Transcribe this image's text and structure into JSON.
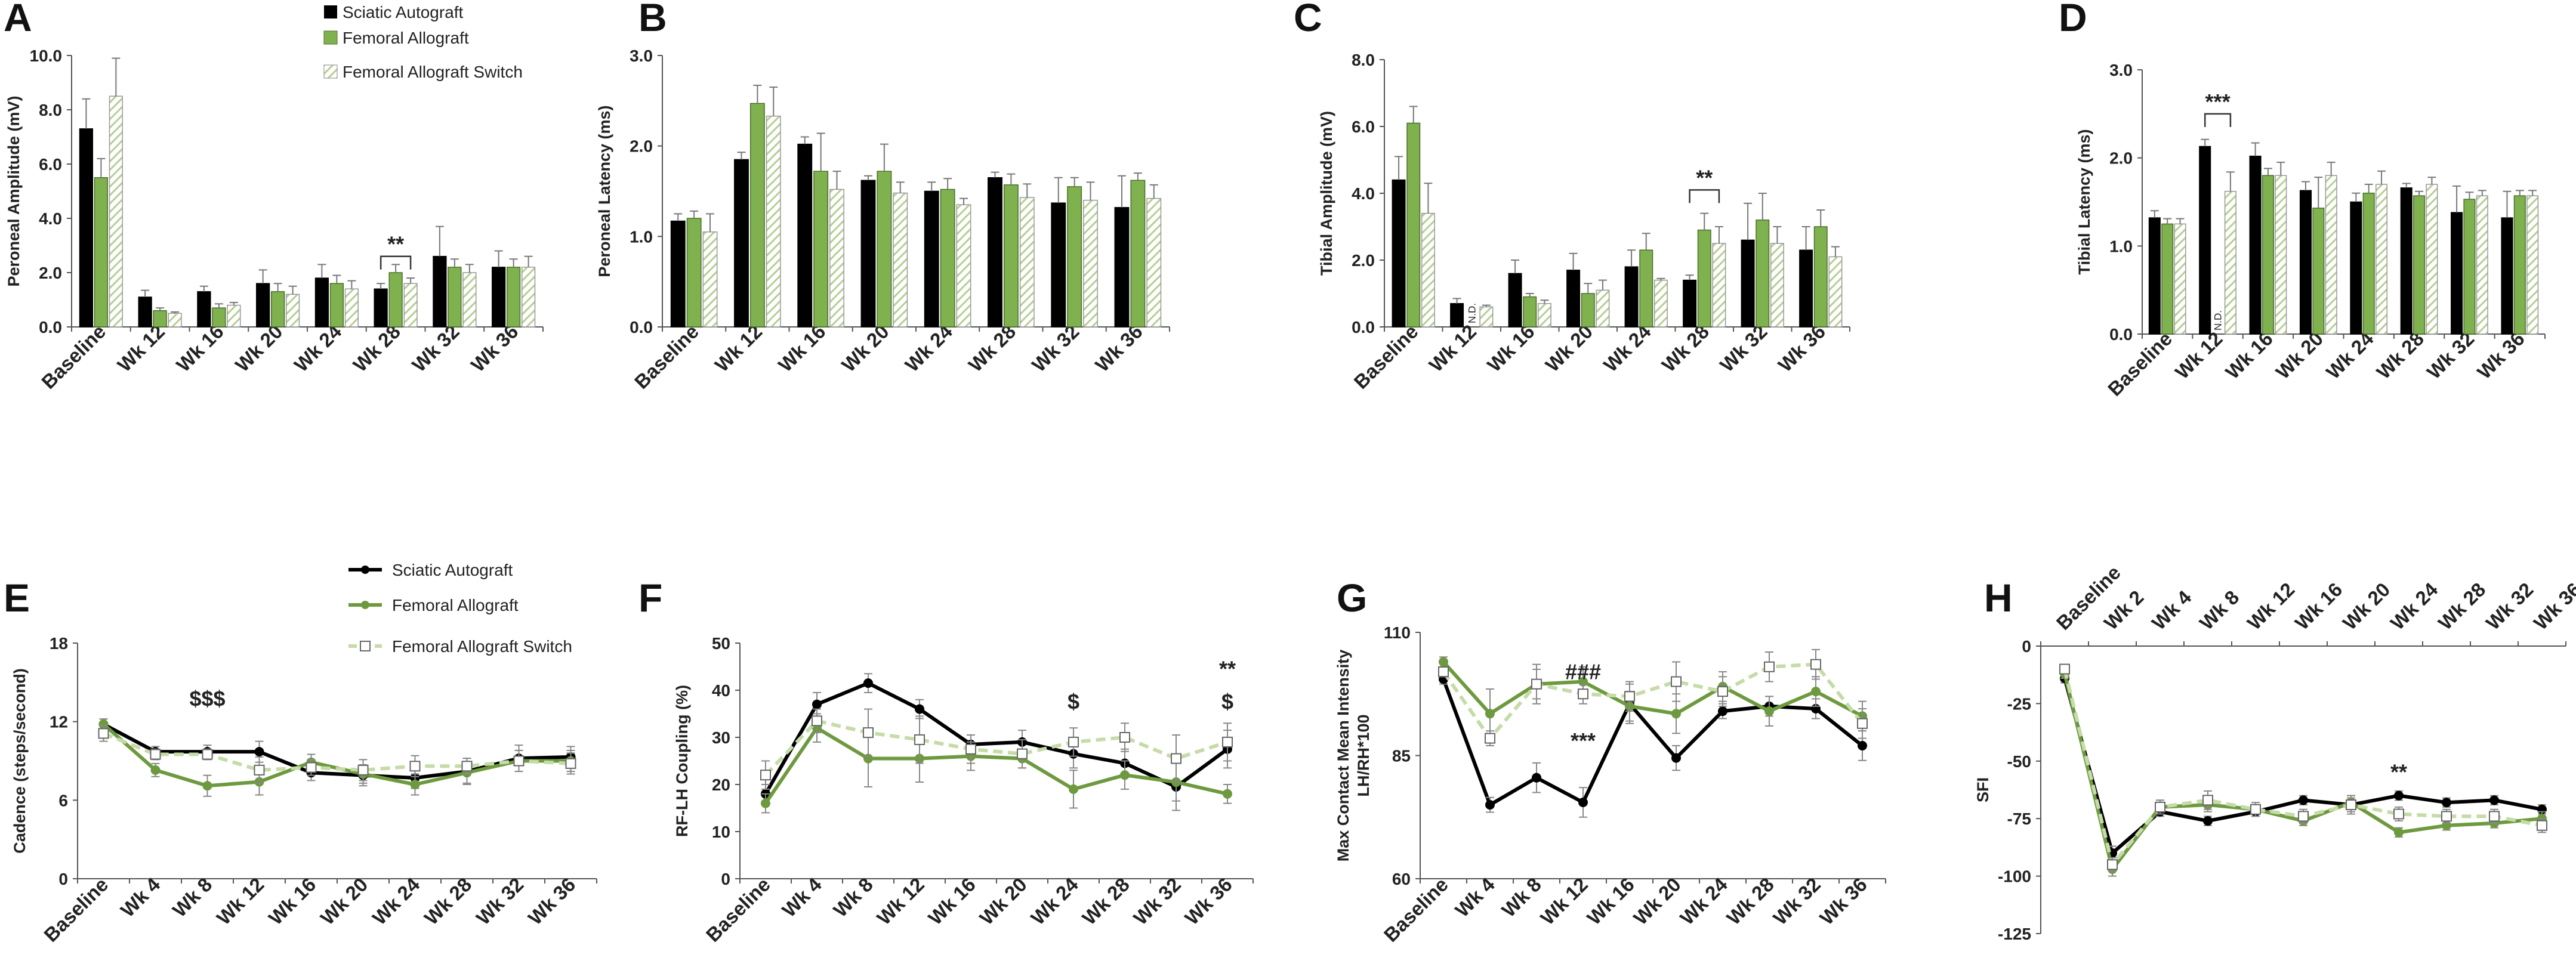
{
  "colors": {
    "sciatic": "#000000",
    "femoral": "#6e9a3f",
    "femoral_bar": "#7fb14e",
    "switch": "#bfd6a1",
    "switch_line": "#c5dba8"
  },
  "legend_top": [
    "Sciatic Autograft",
    "Femoral Allograft",
    "Femoral Allograft Switch"
  ],
  "legend_bottom": [
    "Sciatic Autograft",
    "Femoral Allograft",
    "Femoral Allograft Switch"
  ],
  "chart_data": [
    {
      "panel": "A",
      "type": "bar",
      "ylabel": "Peroneal Amplitude (mV)",
      "ylim": [
        0,
        10
      ],
      "yticks": [
        "0.0",
        "2.0",
        "4.0",
        "6.0",
        "8.0",
        "10.0"
      ],
      "categories": [
        "Baseline",
        "Wk 12",
        "Wk 16",
        "Wk 20",
        "Wk 24",
        "Wk 28",
        "Wk 32",
        "Wk 36"
      ],
      "series": [
        {
          "name": "Sciatic Autograft",
          "values": [
            7.3,
            1.1,
            1.3,
            1.6,
            1.8,
            1.4,
            2.6,
            2.2
          ],
          "errors": [
            1.1,
            0.25,
            0.2,
            0.5,
            0.5,
            0.2,
            1.1,
            0.6
          ]
        },
        {
          "name": "Femoral Allograft",
          "values": [
            5.5,
            0.6,
            0.7,
            1.3,
            1.6,
            2.0,
            2.2,
            2.2
          ],
          "errors": [
            0.7,
            0.1,
            0.15,
            0.3,
            0.3,
            0.3,
            0.3,
            0.3
          ]
        },
        {
          "name": "Femoral Allograft Switch",
          "values": [
            8.5,
            0.5,
            0.8,
            1.2,
            1.4,
            1.6,
            2.0,
            2.2
          ],
          "errors": [
            1.4,
            0.05,
            0.1,
            0.3,
            0.3,
            0.2,
            0.3,
            0.4
          ]
        }
      ],
      "annotations": [
        {
          "text": "**",
          "category": "Wk 28",
          "y": 2.6,
          "bracket": true
        }
      ]
    },
    {
      "panel": "B",
      "type": "bar",
      "ylabel": "Peroneal Latency (ms)",
      "ylim": [
        0,
        3
      ],
      "yticks": [
        "0.0",
        "1.0",
        "2.0",
        "3.0"
      ],
      "categories": [
        "Baseline",
        "Wk 12",
        "Wk 16",
        "Wk 20",
        "Wk 24",
        "Wk 28",
        "Wk 32",
        "Wk 36"
      ],
      "series": [
        {
          "name": "Sciatic Autograft",
          "values": [
            1.17,
            1.85,
            2.02,
            1.62,
            1.5,
            1.65,
            1.37,
            1.32
          ],
          "errors": [
            0.08,
            0.08,
            0.08,
            0.05,
            0.1,
            0.06,
            0.28,
            0.35
          ]
        },
        {
          "name": "Femoral Allograft",
          "values": [
            1.2,
            2.47,
            1.72,
            1.72,
            1.52,
            1.57,
            1.55,
            1.62
          ],
          "errors": [
            0.08,
            0.2,
            0.42,
            0.3,
            0.12,
            0.12,
            0.1,
            0.08
          ]
        },
        {
          "name": "Femoral Allograft Switch",
          "values": [
            1.05,
            2.33,
            1.52,
            1.48,
            1.35,
            1.43,
            1.4,
            1.42
          ],
          "errors": [
            0.2,
            0.32,
            0.2,
            0.12,
            0.07,
            0.15,
            0.2,
            0.15
          ]
        }
      ],
      "annotations": []
    },
    {
      "panel": "C",
      "type": "bar",
      "ylabel": "Tibial Amplitude (mV)",
      "ylim": [
        0,
        8
      ],
      "yticks": [
        "0.0",
        "2.0",
        "4.0",
        "6.0",
        "8.0"
      ],
      "categories": [
        "Baseline",
        "Wk 12",
        "Wk 16",
        "Wk 20",
        "Wk 24",
        "Wk 28",
        "Wk 32",
        "Wk 36"
      ],
      "series": [
        {
          "name": "Sciatic Autograft",
          "values": [
            4.4,
            0.7,
            1.6,
            1.7,
            1.8,
            1.4,
            2.6,
            2.3
          ],
          "errors": [
            0.7,
            0.15,
            0.4,
            0.5,
            0.5,
            0.15,
            1.1,
            0.7
          ]
        },
        {
          "name": "Femoral Allograft",
          "values": [
            6.1,
            null,
            0.9,
            1.0,
            2.3,
            2.9,
            3.2,
            3.0
          ],
          "errors": [
            0.5,
            0,
            0.1,
            0.3,
            0.5,
            0.5,
            0.8,
            0.5
          ]
        },
        {
          "name": "Femoral Allograft Switch",
          "values": [
            3.4,
            0.6,
            0.7,
            1.1,
            1.4,
            2.5,
            2.5,
            2.1
          ],
          "errors": [
            0.9,
            0.05,
            0.1,
            0.3,
            0.05,
            0.5,
            0.5,
            0.3
          ]
        }
      ],
      "annotations": [
        {
          "text": "**",
          "category": "Wk 28",
          "y": 4.1,
          "bracket": true
        },
        {
          "text": "N.D.",
          "category": "Wk 12",
          "series": "Femoral Allograft"
        }
      ]
    },
    {
      "panel": "D",
      "type": "bar",
      "ylabel": "Tibial Latency (ms)",
      "ylim": [
        0,
        3
      ],
      "yticks": [
        "0.0",
        "1.0",
        "2.0",
        "3.0"
      ],
      "categories": [
        "Baseline",
        "Wk 12",
        "Wk 16",
        "Wk 20",
        "Wk 24",
        "Wk 28",
        "Wk 32",
        "Wk 36"
      ],
      "series": [
        {
          "name": "Sciatic Autograft",
          "values": [
            1.32,
            2.13,
            2.02,
            1.63,
            1.5,
            1.66,
            1.38,
            1.32
          ],
          "errors": [
            0.08,
            0.08,
            0.15,
            0.1,
            0.1,
            0.05,
            0.3,
            0.3
          ]
        },
        {
          "name": "Femoral Allograft",
          "values": [
            1.25,
            null,
            1.8,
            1.43,
            1.6,
            1.57,
            1.53,
            1.57
          ],
          "errors": [
            0.06,
            0,
            0.08,
            0.35,
            0.1,
            0.05,
            0.08,
            0.06
          ]
        },
        {
          "name": "Femoral Allograft Switch",
          "values": [
            1.25,
            1.62,
            1.8,
            1.8,
            1.7,
            1.7,
            1.57,
            1.57
          ],
          "errors": [
            0.06,
            0.22,
            0.15,
            0.15,
            0.15,
            0.08,
            0.06,
            0.06
          ]
        }
      ],
      "annotations": [
        {
          "text": "***",
          "category": "Wk 12",
          "y": 2.5,
          "bracket": true
        },
        {
          "text": "N.D.",
          "category": "Wk 12",
          "series": "Femoral Allograft"
        }
      ]
    },
    {
      "panel": "E",
      "type": "line",
      "ylabel": "Cadence (steps/second)",
      "ylim": [
        0,
        18
      ],
      "yticks": [
        "0",
        "6",
        "12",
        "18"
      ],
      "categories": [
        "Baseline",
        "Wk 4",
        "Wk 8",
        "Wk 12",
        "Wk 16",
        "Wk 20",
        "Wk 24",
        "Wk 28",
        "Wk 32",
        "Wk 36"
      ],
      "series": [
        {
          "name": "Sciatic Autograft",
          "values": [
            11.8,
            9.7,
            9.7,
            9.7,
            8.1,
            7.9,
            7.7,
            8.2,
            9.2,
            9.3
          ],
          "errors": [
            0.4,
            0.4,
            0.5,
            0.8,
            0.6,
            0.8,
            0.8,
            1.0,
            1.0,
            0.8
          ]
        },
        {
          "name": "Femoral Allograft",
          "values": [
            11.8,
            8.3,
            7.1,
            7.4,
            8.9,
            8.0,
            7.2,
            8.1,
            9.0,
            9.0
          ],
          "errors": [
            0.4,
            0.5,
            0.8,
            1.0,
            0.6,
            0.7,
            0.8,
            0.8,
            0.8,
            0.8
          ]
        },
        {
          "name": "Femoral Allograft Switch",
          "values": [
            11.1,
            9.5,
            9.5,
            8.3,
            8.5,
            8.3,
            8.6,
            8.6,
            9.0,
            8.8
          ],
          "errors": [
            0.6,
            0.4,
            0.4,
            1.0,
            0.6,
            0.8,
            0.8,
            0.6,
            0.8,
            0.8
          ]
        }
      ],
      "annotations": [
        {
          "text": "$$$",
          "category": "Wk 8",
          "y": 13.2
        }
      ]
    },
    {
      "panel": "F",
      "type": "line",
      "ylabel": "RF-LH Coupling (%)",
      "ylim": [
        0,
        50
      ],
      "yticks": [
        "0",
        "10",
        "20",
        "30",
        "40",
        "50"
      ],
      "categories": [
        "Baseline",
        "Wk 4",
        "Wk 8",
        "Wk 12",
        "Wk 16",
        "Wk 20",
        "Wk 24",
        "Wk 28",
        "Wk 32",
        "Wk 36"
      ],
      "series": [
        {
          "name": "Sciatic Autograft",
          "values": [
            18,
            37,
            41.5,
            36,
            28.5,
            29,
            26.5,
            24.5,
            19.5,
            27.5
          ],
          "errors": [
            2,
            2.5,
            2,
            2,
            2,
            2.5,
            3,
            3,
            5,
            4
          ]
        },
        {
          "name": "Femoral Allograft",
          "values": [
            16,
            32,
            25.5,
            25.5,
            26,
            25.5,
            19,
            22,
            20.5,
            18
          ],
          "errors": [
            2,
            3,
            6,
            5,
            3,
            2,
            4,
            3,
            4,
            2
          ]
        },
        {
          "name": "Femoral Allograft Switch",
          "values": [
            22,
            33.5,
            31,
            29.5,
            27.5,
            26.5,
            29,
            30,
            25.5,
            29
          ],
          "errors": [
            3,
            2.5,
            5,
            5,
            3,
            3,
            3,
            3,
            5,
            4
          ]
        }
      ],
      "annotations": [
        {
          "text": "$",
          "category": "Wk 24",
          "y": 36
        },
        {
          "text": "$",
          "category": "Wk 36",
          "y": 36
        },
        {
          "text": "**",
          "category": "Wk 36",
          "y": 43
        }
      ]
    },
    {
      "panel": "G",
      "type": "line",
      "ylabel": "Max Contact Mean Intensity\nLH/RH*100",
      "ylim": [
        60,
        110
      ],
      "yticks": [
        "60",
        "85",
        "110"
      ],
      "categories": [
        "Baseline",
        "Wk 4",
        "Wk 8",
        "Wk 12",
        "Wk 16",
        "Wk 20",
        "Wk 24",
        "Wk 28",
        "Wk 32",
        "Wk 36"
      ],
      "series": [
        {
          "name": "Sciatic Autograft",
          "values": [
            100.5,
            75,
            80.5,
            75.5,
            95.5,
            84.5,
            94,
            95,
            94.5,
            87
          ],
          "errors": [
            1,
            1.5,
            3,
            3,
            4,
            2.5,
            1.5,
            2,
            2,
            3
          ]
        },
        {
          "name": "Femoral Allograft",
          "values": [
            104,
            93.5,
            99.5,
            100,
            95,
            93.5,
            99,
            94,
            98,
            93
          ],
          "errors": [
            1,
            5,
            4,
            3,
            3,
            4,
            3,
            3,
            3,
            3
          ]
        },
        {
          "name": "Femoral Allograft Switch",
          "values": [
            102,
            88.5,
            99.5,
            97.5,
            97,
            100,
            98,
            103,
            103.5,
            91.5
          ],
          "errors": [
            1,
            1.5,
            3,
            2,
            3,
            4,
            3,
            3,
            3,
            3
          ]
        }
      ],
      "annotations": [
        {
          "text": "###",
          "category": "Wk 12",
          "y": 100.5
        },
        {
          "text": "***",
          "category": "Wk 12",
          "y": 86.5
        }
      ]
    },
    {
      "panel": "H",
      "type": "line",
      "ylabel": "SFI",
      "ylim": [
        -125,
        0
      ],
      "yticks": [
        "0",
        "-25",
        "-50",
        "-75",
        "-100",
        "-125"
      ],
      "categories": [
        "Baseline",
        "Wk 2",
        "Wk 4",
        "Wk 8",
        "Wk 12",
        "Wk 16",
        "Wk 20",
        "Wk 24",
        "Wk 28",
        "Wk 32",
        "Wk 36"
      ],
      "series": [
        {
          "name": "Sciatic Autograft",
          "values": [
            -14,
            -90,
            -72,
            -76,
            -72,
            -67,
            -69,
            -65,
            -68,
            -67,
            -71
          ],
          "errors": [
            2,
            3,
            2,
            2,
            2,
            2,
            3,
            2,
            2,
            2,
            2
          ]
        },
        {
          "name": "Femoral Allograft",
          "values": [
            -12,
            -97,
            -70,
            -69,
            -71,
            -76,
            -68,
            -81,
            -78,
            -77,
            -75
          ],
          "errors": [
            2,
            3,
            3,
            3,
            2,
            2,
            3,
            2,
            2,
            2,
            3
          ]
        },
        {
          "name": "Femoral Allograft Switch",
          "values": [
            -10,
            -95,
            -70,
            -67,
            -71,
            -74,
            -69,
            -73,
            -74,
            -74,
            -78
          ],
          "errors": [
            2,
            3,
            3,
            4,
            3,
            3,
            4,
            3,
            3,
            3,
            3
          ]
        }
      ],
      "annotations": [
        {
          "text": "**",
          "category": "Wk 24",
          "y": -58
        }
      ]
    }
  ]
}
